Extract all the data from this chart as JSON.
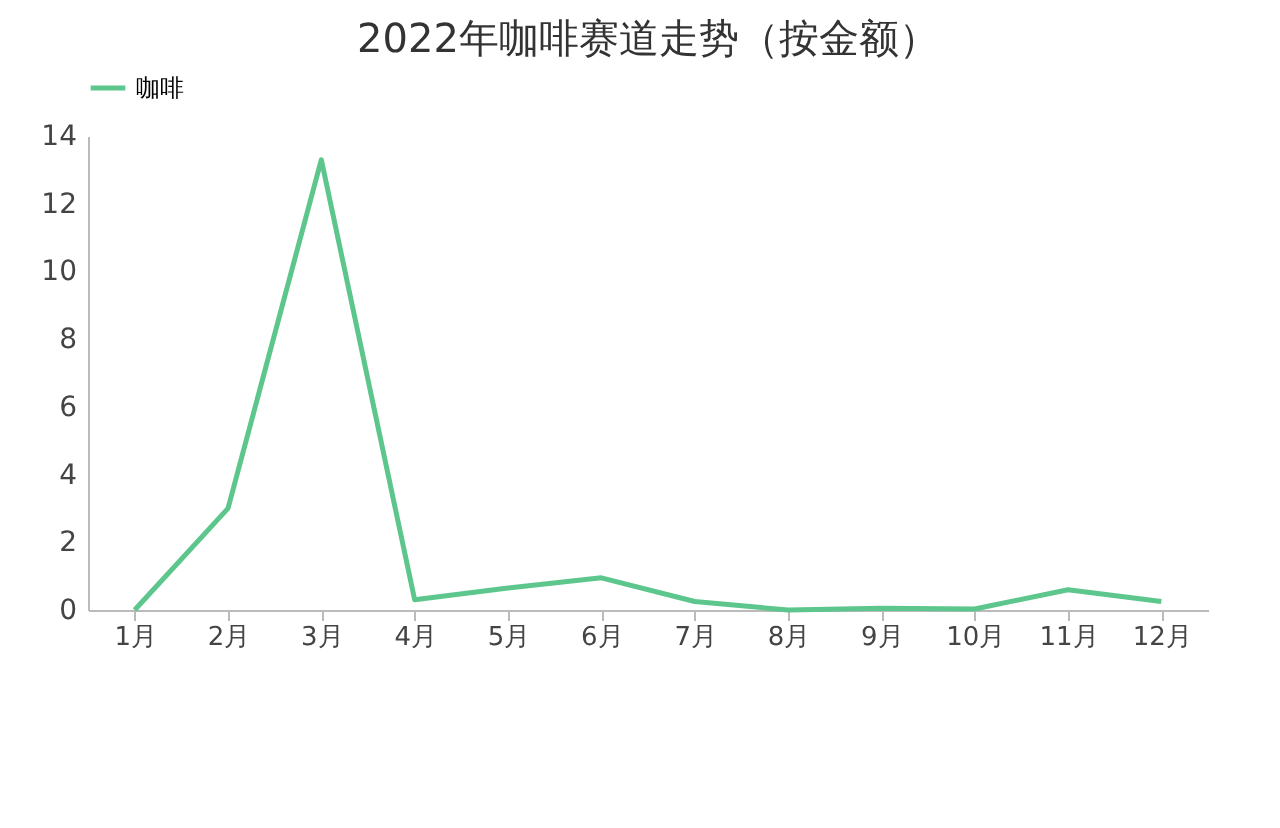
{
  "chart_data": {
    "type": "line",
    "title": "2022年咖啡赛道走势（按金额）",
    "categories": [
      "1月",
      "2月",
      "3月",
      "4月",
      "5月",
      "6月",
      "7月",
      "8月",
      "9月",
      "10月",
      "11月",
      "12月"
    ],
    "series": [
      {
        "name": "咖啡",
        "color": "#5cc68c",
        "values": [
          0,
          3,
          13.3,
          0.3,
          0.65,
          0.95,
          0.25,
          0,
          0.05,
          0.03,
          0.6,
          0.25
        ]
      }
    ],
    "ylim": [
      0,
      14
    ],
    "yticks": [
      0,
      2,
      4,
      6,
      8,
      10,
      12,
      14
    ],
    "grid": false,
    "legend": "top",
    "marker": "none"
  }
}
